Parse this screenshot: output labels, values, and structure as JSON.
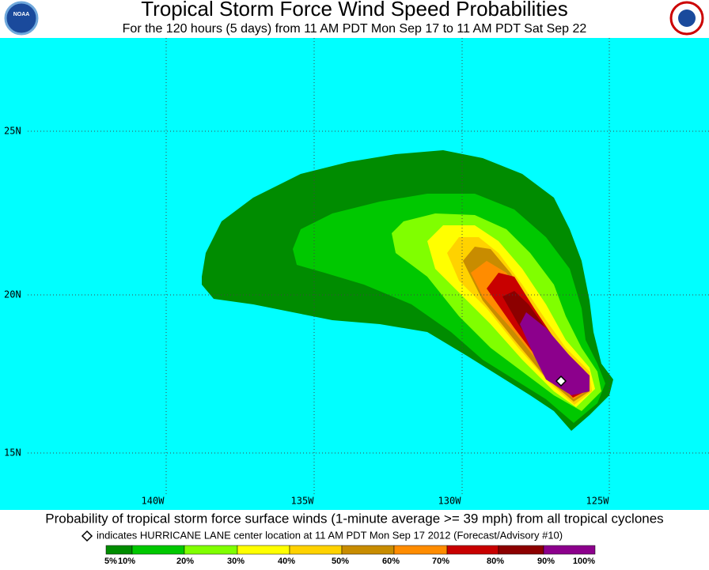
{
  "header": {
    "title": "Tropical Storm Force Wind Speed Probabilities",
    "subtitle": "For the 120 hours (5 days) from 11 AM PDT Mon Sep 17 to 11 AM PDT Sat Sep 22",
    "noaa_logo": "NOAA"
  },
  "map": {
    "lat_labels": [
      "25N",
      "20N",
      "15N"
    ],
    "lon_labels": [
      "140W",
      "135W",
      "130W",
      "125W"
    ]
  },
  "footer": {
    "caption": "Probability of tropical storm force surface winds (1-minute average >= 39 mph) from all tropical cyclones",
    "marker_note": "indicates HURRICANE LANE center location at 11 AM PDT Mon Sep 17 2012 (Forecast/Advisory #10)"
  },
  "legend": {
    "labels": [
      "5%",
      "10%",
      "20%",
      "30%",
      "40%",
      "50%",
      "60%",
      "70%",
      "80%",
      "90%",
      "100%"
    ],
    "colors": [
      "#008c00",
      "#00c800",
      "#80ff00",
      "#ffff00",
      "#ffd200",
      "#c88c00",
      "#ff8c00",
      "#c80000",
      "#8c0000",
      "#8c008c"
    ]
  }
}
